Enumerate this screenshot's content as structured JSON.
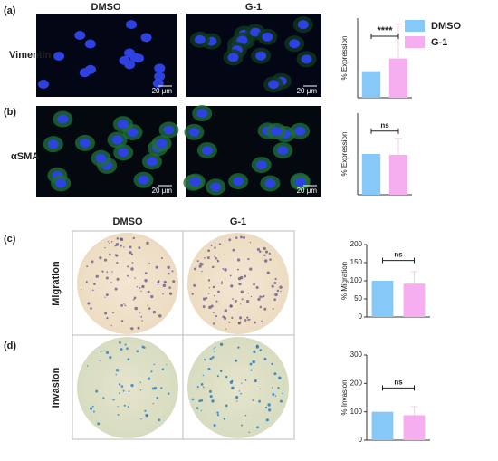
{
  "panels": [
    {
      "label": "(a)",
      "row": "Vimentin"
    },
    {
      "label": "(b)",
      "row": "αSMA"
    },
    {
      "label": "(c)",
      "row": "Migration"
    },
    {
      "label": "(d)",
      "row": "Invasion"
    }
  ],
  "columns_top": [
    "DMSO",
    "G-1"
  ],
  "columns_bottom": [
    "DMSO",
    "G-1"
  ],
  "scale_bar": "20 μm",
  "chart_data": [
    {
      "type": "bar",
      "ylabel": "% Expression",
      "ylim": [
        0,
        300
      ],
      "annotation": "****",
      "series": [
        {
          "name": "DMSO",
          "color": "#86c8f7",
          "values": [
            100
          ]
        },
        {
          "name": "G-1",
          "color": "#f6aef0",
          "values": [
            148
          ],
          "errors": [
            130
          ]
        }
      ]
    },
    {
      "type": "bar",
      "ylabel": "% Expression",
      "ylim": [
        0,
        200
      ],
      "annotation": "ns",
      "series": [
        {
          "name": "DMSO",
          "color": "#86c8f7",
          "values": [
            100
          ]
        },
        {
          "name": "G-1",
          "color": "#f6aef0",
          "values": [
            98
          ],
          "errors": [
            40
          ]
        }
      ]
    },
    {
      "type": "bar",
      "ylabel": "% Migration",
      "ylim": [
        0,
        200
      ],
      "yticks": [
        0,
        50,
        100,
        150,
        200
      ],
      "annotation": "ns",
      "series": [
        {
          "name": "DMSO",
          "color": "#86c8f7",
          "values": [
            100
          ]
        },
        {
          "name": "G-1",
          "color": "#f6aef0",
          "values": [
            92
          ],
          "errors": [
            33
          ]
        }
      ]
    },
    {
      "type": "bar",
      "ylabel": "% Invasion",
      "ylim": [
        0,
        300
      ],
      "yticks": [
        0,
        100,
        200,
        300
      ],
      "annotation": "ns",
      "series": [
        {
          "name": "DMSO",
          "color": "#86c8f7",
          "values": [
            100
          ]
        },
        {
          "name": "G-1",
          "color": "#f6aef0",
          "values": [
            88
          ],
          "errors": [
            30
          ]
        }
      ]
    }
  ]
}
